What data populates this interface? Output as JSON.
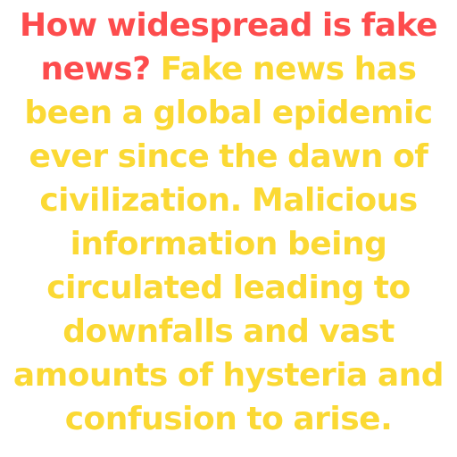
{
  "post": {
    "question": "How widespread is fake news?",
    "answer": "Fake news has been a global epidemic ever since the dawn of civilization. Malicious information being circulated leading to downfalls and vast amounts of hysteria and confusion to arise."
  },
  "colors": {
    "question": "#fd4c4d",
    "answer": "#fbd934",
    "background": "#ffffff"
  }
}
